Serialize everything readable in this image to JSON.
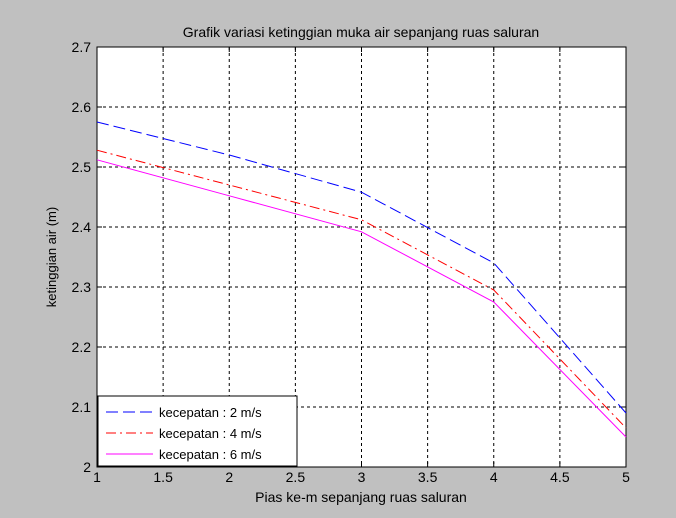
{
  "chart_data": {
    "type": "line",
    "title": "Grafik variasi ketinggian muka air sepanjang ruas saluran",
    "xlabel": "Pias ke-m sepanjang ruas saluran",
    "ylabel": "ketinggian air (m)",
    "xlim": [
      1,
      5
    ],
    "ylim": [
      2,
      2.7
    ],
    "xticks": [
      1,
      1.5,
      2,
      2.5,
      3,
      3.5,
      4,
      4.5,
      5
    ],
    "xtick_labels": [
      "1",
      "1.5",
      "2",
      "2.5",
      "3",
      "3.5",
      "4",
      "4.5",
      "5"
    ],
    "yticks": [
      2,
      2.1,
      2.2,
      2.3,
      2.4,
      2.5,
      2.6,
      2.7
    ],
    "ytick_labels": [
      "2",
      "2.1",
      "2.2",
      "2.3",
      "2.4",
      "2.5",
      "2.6",
      "2.7"
    ],
    "grid": true,
    "legend_position": "bottom-left",
    "x": [
      1,
      2,
      3,
      4,
      5
    ],
    "series": [
      {
        "name": "kecepatan : 2 m/s",
        "values": [
          2.575,
          2.52,
          2.458,
          2.34,
          2.09
        ],
        "color": "#0000ff",
        "dash": "dashed"
      },
      {
        "name": "kecepatan : 4 m/s",
        "values": [
          2.528,
          2.47,
          2.412,
          2.295,
          2.065
        ],
        "color": "#ff0000",
        "dash": "dashdot"
      },
      {
        "name": "kecepatan : 6 m/s",
        "values": [
          2.512,
          2.452,
          2.392,
          2.275,
          2.05
        ],
        "color": "#ff00ff",
        "dash": "solid"
      }
    ]
  }
}
